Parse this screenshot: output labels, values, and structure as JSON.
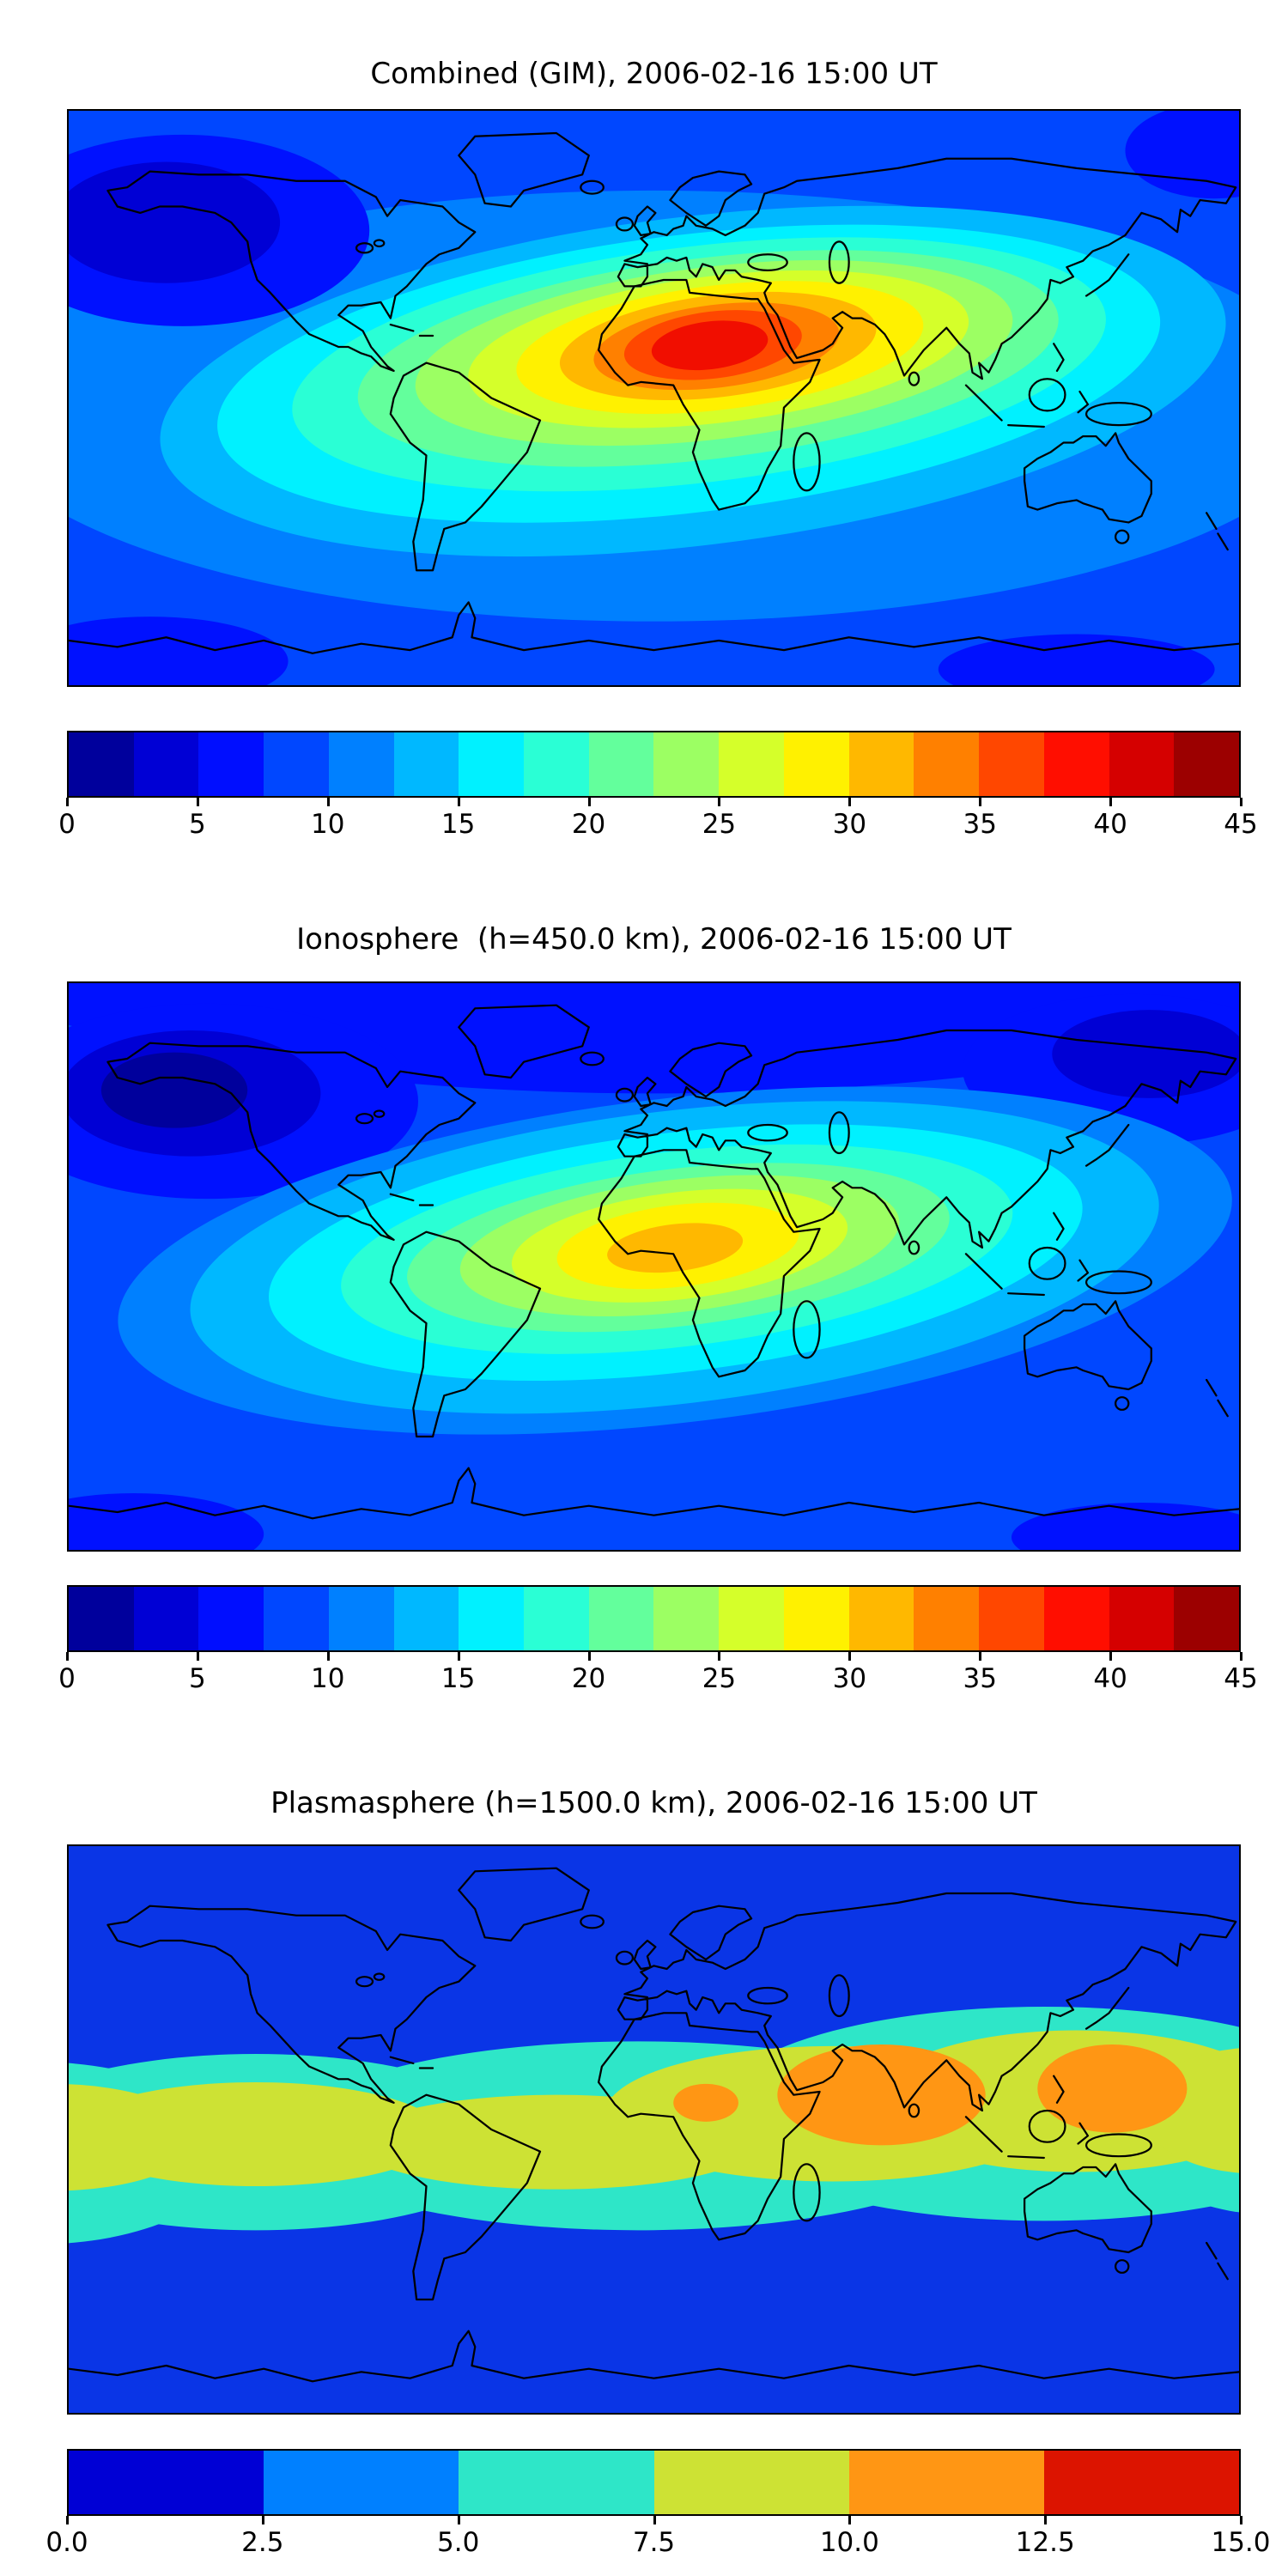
{
  "figure": {
    "background_color": "#ffffff",
    "text_color": "#000000",
    "panels": [
      {
        "id": "combined-gim",
        "title": "Combined (GIM), 2006-02-16 15:00 UT",
        "map": {
          "outline_color": "#000000",
          "ocean_palette": [
            "#0000d5",
            "#0011ff",
            "#0047ff",
            "#0080ff"
          ],
          "enhancement_palette": [
            "#00b8ff",
            "#00f1ff",
            "#2affd5",
            "#63ff9c",
            "#9cff63",
            "#d5ff2a",
            "#fff100",
            "#ffb800",
            "#ff8000",
            "#ff4700",
            "#f10e00"
          ]
        },
        "colorbar": {
          "min": 0,
          "max": 45,
          "tick_labels": [
            "0",
            "5",
            "10",
            "15",
            "20",
            "25",
            "30",
            "35",
            "40",
            "45"
          ],
          "segment_colors": [
            "#00009c",
            "#0000d5",
            "#000eff",
            "#0047ff",
            "#0080ff",
            "#00b8ff",
            "#00f1ff",
            "#2affd5",
            "#63ff9c",
            "#9cff63",
            "#d5ff2a",
            "#fff100",
            "#ffb800",
            "#ff8000",
            "#ff4700",
            "#ff0e00",
            "#d50000",
            "#9c0000"
          ]
        }
      },
      {
        "id": "ionosphere",
        "title": "Ionosphere  (h=450.0 km), 2006-02-16 15:00 UT",
        "map": {
          "outline_color": "#000000",
          "ocean_palette": [
            "#00009c",
            "#0000d5",
            "#0011ff",
            "#0047ff",
            "#0080ff"
          ],
          "enhancement_palette": [
            "#00b8ff",
            "#00f1ff",
            "#2affd5",
            "#63ff9c",
            "#9cff63",
            "#d5ff2a",
            "#fff100",
            "#ffb800"
          ]
        },
        "colorbar": {
          "min": 0,
          "max": 45,
          "tick_labels": [
            "0",
            "5",
            "10",
            "15",
            "20",
            "25",
            "30",
            "35",
            "40",
            "45"
          ],
          "segment_colors": [
            "#00009c",
            "#0000d5",
            "#000eff",
            "#0047ff",
            "#0080ff",
            "#00b8ff",
            "#00f1ff",
            "#2affd5",
            "#63ff9c",
            "#9cff63",
            "#d5ff2a",
            "#fff100",
            "#ffb800",
            "#ff8000",
            "#ff4700",
            "#ff0e00",
            "#d50000",
            "#9c0000"
          ]
        }
      },
      {
        "id": "plasmasphere",
        "title": "Plasmasphere (h=1500.0 km), 2006-02-16 15:00 UT",
        "map": {
          "outline_color": "#000000",
          "ocean_palette": [
            "#0a35e6"
          ],
          "enhancement_palette": [
            "#2ee6c8",
            "#cde234",
            "#ff9614"
          ]
        },
        "colorbar": {
          "min": 0,
          "max": 15,
          "tick_labels": [
            "0.0",
            "2.5",
            "5.0",
            "7.5",
            "10.0",
            "12.5",
            "15.0"
          ],
          "segment_colors": [
            "#0000d5",
            "#0080ff",
            "#2ee6c8",
            "#cde234",
            "#ff9614",
            "#dc1400"
          ]
        }
      }
    ]
  },
  "chart_data": [
    {
      "type": "heatmap",
      "variant": "filled-contour world map (equirectangular, lon -180..180, lat -90..90)",
      "title": "Combined (GIM), 2006-02-16 15:00 UT",
      "colormap": "jet",
      "value_range": [
        0,
        45
      ],
      "contour_step": 2.5,
      "colorbar_ticks": [
        0,
        5,
        10,
        15,
        20,
        25,
        30,
        35,
        40,
        45
      ],
      "axis_tick_labels_shown": false,
      "features": [
        {
          "feature": "global-maximum",
          "approx_lon": 18,
          "approx_lat": 13,
          "approx_value": 43,
          "note": "dark-red core over North-Central Africa"
        },
        {
          "feature": "equatorial-enhancement",
          "approx_lon_range": [
            -75,
            65
          ],
          "approx_lat_range": [
            -12,
            32
          ],
          "approx_value_range": [
            25,
            43
          ],
          "note": "elongated orange/yellow region from northern South America across Africa to Arabia"
        },
        {
          "feature": "tropical-band",
          "approx_lat_range": [
            -40,
            45
          ],
          "approx_value_range": [
            12.5,
            25
          ],
          "note": "cyan/green band around the globe"
        },
        {
          "feature": "minimum",
          "approx_lon": -150,
          "approx_lat": 50,
          "approx_value": 3,
          "note": "dark-blue cell in North Pacific"
        },
        {
          "feature": "high-latitude-background",
          "approx_value_range": [
            5,
            12.5
          ]
        }
      ]
    },
    {
      "type": "heatmap",
      "variant": "filled-contour world map (equirectangular, lon -180..180, lat -90..90)",
      "title": "Ionosphere  (h=450.0 km), 2006-02-16 15:00 UT",
      "colormap": "jet",
      "value_range": [
        0,
        45
      ],
      "contour_step": 2.5,
      "colorbar_ticks": [
        0,
        5,
        10,
        15,
        20,
        25,
        30,
        35,
        40,
        45
      ],
      "axis_tick_labels_shown": false,
      "features": [
        {
          "feature": "global-maximum",
          "approx_lon": 8,
          "approx_lat": 5,
          "approx_value": 31,
          "note": "yellow/orange core over equatorial West-Central Africa"
        },
        {
          "feature": "equatorial-enhancement",
          "approx_lon_range": [
            -60,
            45
          ],
          "approx_lat_range": [
            -20,
            20
          ],
          "approx_value_range": [
            20,
            31
          ],
          "note": "green/yellow region over South America and Africa"
        },
        {
          "feature": "tropical-band",
          "approx_lat_range": [
            -40,
            35
          ],
          "approx_value_range": [
            10,
            20
          ]
        },
        {
          "feature": "minimum",
          "approx_lon": -155,
          "approx_lat": 55,
          "approx_value": 2,
          "note": "very dark blue North Pacific; second dark cell over NE Asia"
        },
        {
          "feature": "high-latitude-background",
          "approx_value_range": [
            2.5,
            10
          ]
        }
      ]
    },
    {
      "type": "heatmap",
      "variant": "filled-contour world map (equirectangular, lon -180..180, lat -90..90)",
      "title": "Plasmasphere (h=1500.0 km), 2006-02-16 15:00 UT",
      "colormap": "jet",
      "value_range": [
        0,
        15
      ],
      "contour_step": 2.5,
      "colorbar_ticks": [
        0.0,
        2.5,
        5.0,
        7.5,
        10.0,
        12.5,
        15.0
      ],
      "axis_tick_labels_shown": false,
      "features": [
        {
          "feature": "equatorial-band-outer",
          "approx_lat_range": [
            -40,
            40
          ],
          "approx_value_range": [
            5,
            7.5
          ],
          "note": "turquoise belt following the (magnetic) equator, shifted north on the Asian side"
        },
        {
          "feature": "equatorial-band-inner",
          "approx_lat_range": [
            -25,
            30
          ],
          "approx_value_range": [
            7.5,
            10
          ],
          "note": "yellow-green belt around the globe"
        },
        {
          "feature": "maximum-cell-south-asia",
          "approx_lon_range": [
            55,
            105
          ],
          "approx_lat_range": [
            -5,
            25
          ],
          "approx_value_range": [
            10,
            12.5
          ],
          "note": "orange cell over India / Bay of Bengal / SE Asia"
        },
        {
          "feature": "maximum-cell-west-pacific",
          "approx_lon_range": [
            125,
            160
          ],
          "approx_lat_range": [
            0,
            25
          ],
          "approx_value_range": [
            10,
            12.5
          ],
          "note": "orange cell east of Japan/Philippines"
        },
        {
          "feature": "small-cell-africa",
          "approx_lon": 16,
          "approx_lat": 8,
          "approx_value": 10,
          "note": "small orange patch over Central Africa"
        },
        {
          "feature": "high-latitude-background",
          "approx_value_range": [
            0,
            5
          ],
          "note": "uniform blue poleward of about ±45°"
        }
      ]
    }
  ]
}
